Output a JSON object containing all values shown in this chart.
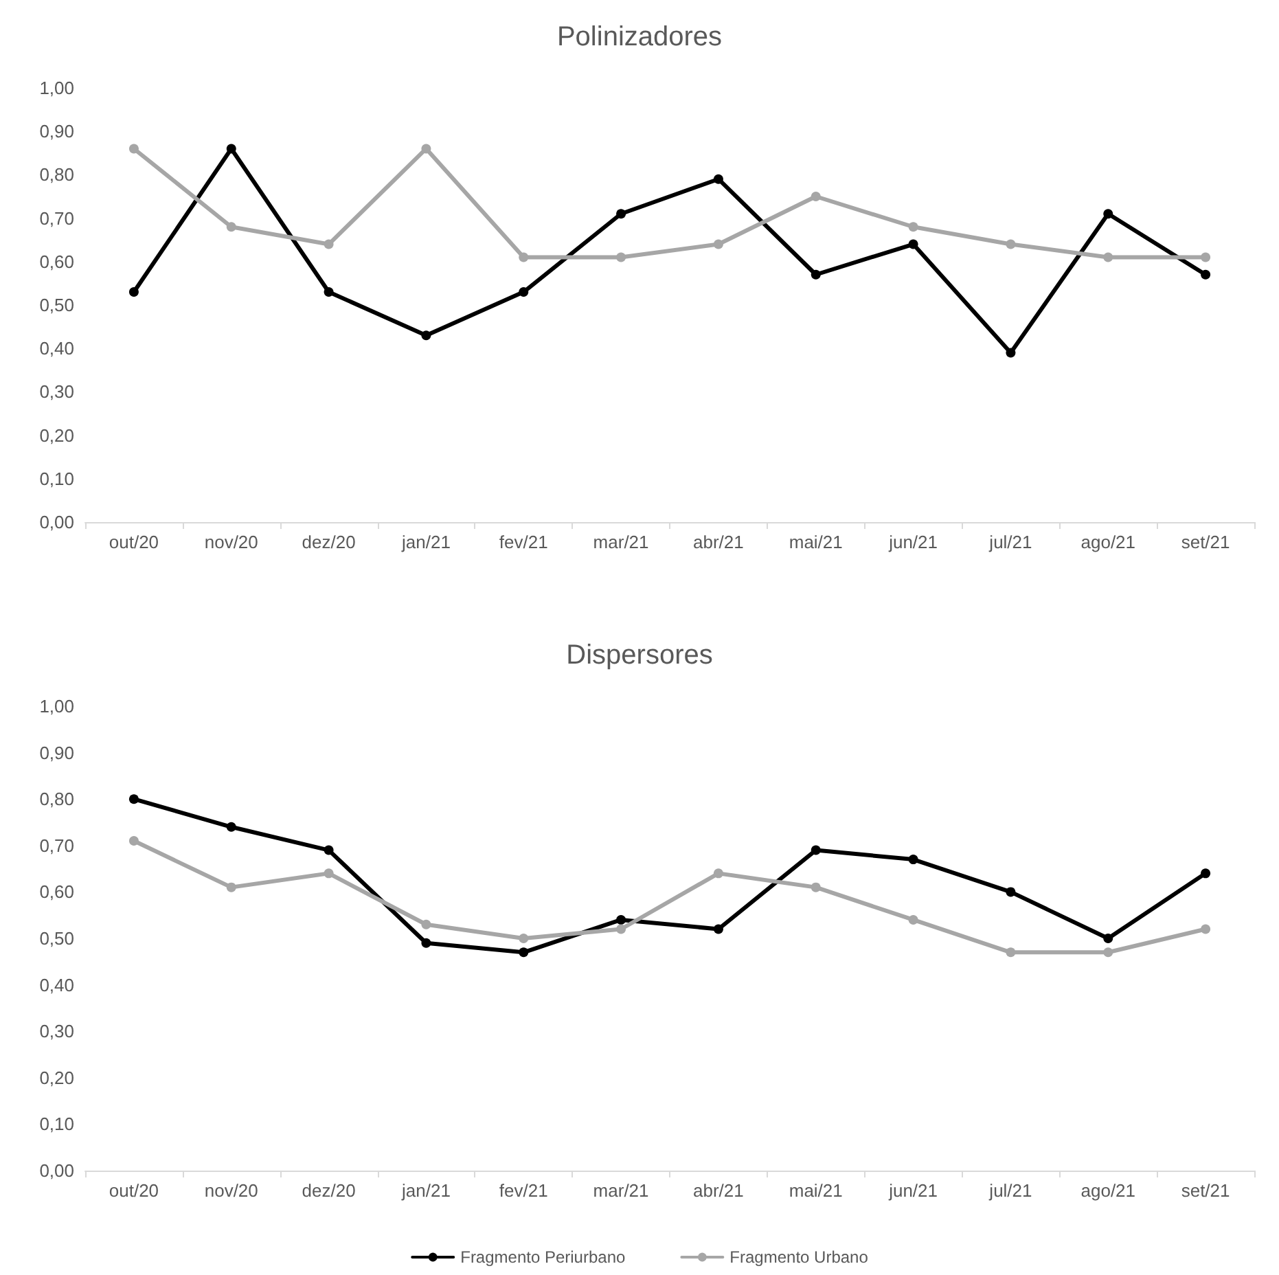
{
  "chart_data": [
    {
      "type": "line",
      "title": "Polinizadores",
      "categories": [
        "out/20",
        "nov/20",
        "dez/20",
        "jan/21",
        "fev/21",
        "mar/21",
        "abr/21",
        "mai/21",
        "jun/21",
        "jul/21",
        "ago/21",
        "set/21"
      ],
      "series": [
        {
          "color": "#000000",
          "values": [
            0.53,
            0.86,
            0.53,
            0.43,
            0.53,
            0.71,
            0.79,
            0.57,
            0.64,
            0.39,
            0.71,
            0.57
          ]
        },
        {
          "color": "#a6a6a6",
          "values": [
            0.86,
            0.68,
            0.64,
            0.86,
            0.61,
            0.61,
            0.64,
            0.75,
            0.68,
            0.64,
            0.61,
            0.61
          ]
        }
      ],
      "ylim": [
        0,
        1
      ],
      "yticks": [
        {
          "value": 0,
          "label": "0,00"
        },
        {
          "value": 0.1,
          "label": "0,10"
        },
        {
          "value": 0.2,
          "label": "0,20"
        },
        {
          "value": 0.3,
          "label": "0,30"
        },
        {
          "value": 0.4,
          "label": "0,40"
        },
        {
          "value": 0.5,
          "label": "0,50"
        },
        {
          "value": 0.6,
          "label": "0,60"
        },
        {
          "value": 0.7,
          "label": "0,70"
        },
        {
          "value": 0.8,
          "label": "0,80"
        },
        {
          "value": 0.9,
          "label": "0,90"
        },
        {
          "value": 1,
          "label": "1,00"
        }
      ],
      "grid": false,
      "legend": false,
      "marker": "circle"
    },
    {
      "type": "line",
      "title": "Dispersores",
      "categories": [
        "out/20",
        "nov/20",
        "dez/20",
        "jan/21",
        "fev/21",
        "mar/21",
        "abr/21",
        "mai/21",
        "jun/21",
        "jul/21",
        "ago/21",
        "set/21"
      ],
      "series": [
        {
          "name": "Fragmento Periurbano",
          "color": "#000000",
          "values": [
            0.8,
            0.74,
            0.69,
            0.49,
            0.47,
            0.54,
            0.52,
            0.69,
            0.67,
            0.6,
            0.5,
            0.64
          ]
        },
        {
          "name": "Fragmento Urbano",
          "color": "#a6a6a6",
          "values": [
            0.71,
            0.61,
            0.64,
            0.53,
            0.5,
            0.52,
            0.64,
            0.61,
            0.54,
            0.47,
            0.47,
            0.52
          ]
        }
      ],
      "ylim": [
        0,
        1
      ],
      "yticks": [
        {
          "value": 0,
          "label": "0,00"
        },
        {
          "value": 0.1,
          "label": "0,10"
        },
        {
          "value": 0.2,
          "label": "0,20"
        },
        {
          "value": 0.3,
          "label": "0,30"
        },
        {
          "value": 0.4,
          "label": "0,40"
        },
        {
          "value": 0.5,
          "label": "0,50"
        },
        {
          "value": 0.6,
          "label": "0,60"
        },
        {
          "value": 0.7,
          "label": "0,70"
        },
        {
          "value": 0.8,
          "label": "0,80"
        },
        {
          "value": 0.9,
          "label": "0,90"
        },
        {
          "value": 1,
          "label": "1,00"
        }
      ],
      "grid": false,
      "legend": "bottom",
      "marker": "circle"
    }
  ]
}
